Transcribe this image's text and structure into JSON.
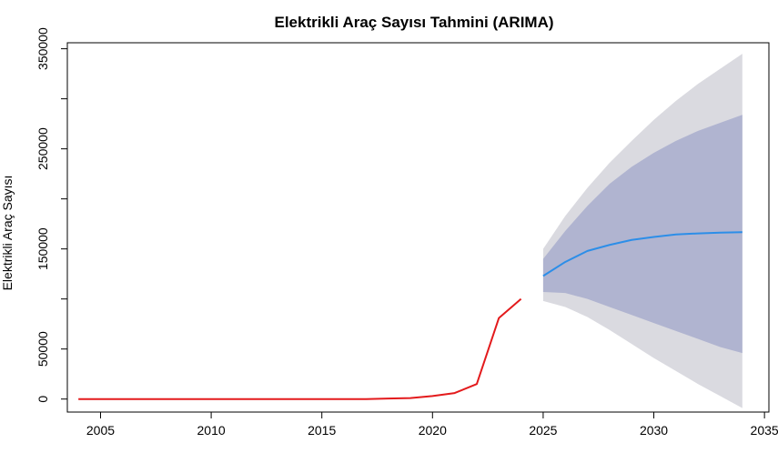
{
  "chart_data": {
    "type": "line",
    "title": "Elektrikli Araç Sayısı Tahmini (ARIMA)",
    "xlabel": "",
    "ylabel": "Elektrikli Araç Sayısı",
    "xlim": [
      2003.5,
      2035.2
    ],
    "ylim": [
      -13000,
      356000
    ],
    "x_ticks": [
      2005,
      2010,
      2015,
      2020,
      2025,
      2030,
      2035
    ],
    "x_tick_labels": [
      "2005",
      "2010",
      "2015",
      "2020",
      "2025",
      "2030",
      "2035"
    ],
    "y_ticks": [
      0,
      50000,
      100000,
      150000,
      200000,
      250000,
      300000,
      350000
    ],
    "y_tick_labels": [
      "0",
      "50000",
      "",
      "150000",
      "",
      "250000",
      "",
      "350000"
    ],
    "grid": false,
    "legend": "none",
    "series": [
      {
        "role": "observed",
        "color": "#e31a1c",
        "x": [
          2004,
          2005,
          2006,
          2007,
          2008,
          2009,
          2010,
          2011,
          2012,
          2013,
          2014,
          2015,
          2016,
          2017,
          2018,
          2019,
          2020,
          2021,
          2022,
          2023,
          2024
        ],
        "y": [
          0,
          0,
          0,
          0,
          0,
          0,
          0,
          0,
          0,
          0,
          0,
          0,
          0,
          0,
          500,
          1000,
          3000,
          6000,
          15000,
          81000,
          100000
        ]
      },
      {
        "role": "forecast",
        "color": "#2c8ee8",
        "x": [
          2025,
          2026,
          2027,
          2028,
          2029,
          2030,
          2031,
          2032,
          2033,
          2034
        ],
        "y": [
          123000,
          137000,
          148000,
          154000,
          159000,
          162000,
          164500,
          165500,
          166300,
          166700
        ],
        "interval_80": {
          "color": "#b0b4d0",
          "lower": [
            107000,
            106000,
            100000,
            92000,
            84000,
            76000,
            68000,
            60000,
            52000,
            46000
          ],
          "upper": [
            140000,
            168000,
            193000,
            215000,
            232000,
            246000,
            258000,
            268000,
            276000,
            284000
          ]
        },
        "interval_95": {
          "color": "#dadae0",
          "lower": [
            98000,
            92000,
            82000,
            69000,
            55000,
            41000,
            28000,
            15000,
            3000,
            -9000
          ],
          "upper": [
            150000,
            183000,
            211000,
            236000,
            258000,
            279000,
            298000,
            315000,
            330000,
            345000
          ]
        }
      }
    ]
  }
}
